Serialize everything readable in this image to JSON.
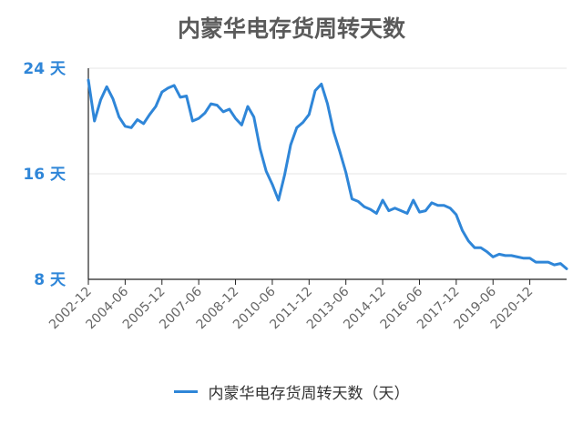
{
  "title": "内蒙华电存货周转天数",
  "chart_data": {
    "type": "line",
    "title": "内蒙华电存货周转天数",
    "y_ticks": [
      {
        "value": 24,
        "label": "24 天"
      },
      {
        "value": 16,
        "label": "16 天"
      },
      {
        "value": 8,
        "label": "8 天"
      }
    ],
    "ylim": [
      8,
      24
    ],
    "x_range": [
      "2002-12",
      "2022-06"
    ],
    "x_ticks": [
      "2002-12",
      "2004-06",
      "2005-12",
      "2007-06",
      "2008-12",
      "2010-06",
      "2011-12",
      "2013-06",
      "2014-12",
      "2016-06",
      "2017-12",
      "2019-06",
      "2020-12"
    ],
    "grid": true,
    "legend_position": "bottom",
    "series": [
      {
        "name": "内蒙华电存货周转天数（天）",
        "color": "#2f86d8",
        "x": [
          "2002-12",
          "2003-03",
          "2003-06",
          "2003-09",
          "2003-12",
          "2004-03",
          "2004-06",
          "2004-09",
          "2004-12",
          "2005-03",
          "2005-06",
          "2005-09",
          "2005-12",
          "2006-03",
          "2006-06",
          "2006-09",
          "2006-12",
          "2007-03",
          "2007-06",
          "2007-09",
          "2007-12",
          "2008-03",
          "2008-06",
          "2008-09",
          "2008-12",
          "2009-03",
          "2009-06",
          "2009-09",
          "2009-12",
          "2010-03",
          "2010-06",
          "2010-09",
          "2010-12",
          "2011-03",
          "2011-06",
          "2011-09",
          "2011-12",
          "2012-03",
          "2012-06",
          "2012-09",
          "2012-12",
          "2013-03",
          "2013-06",
          "2013-09",
          "2013-12",
          "2014-03",
          "2014-06",
          "2014-09",
          "2014-12",
          "2015-03",
          "2015-06",
          "2015-09",
          "2015-12",
          "2016-03",
          "2016-06",
          "2016-09",
          "2016-12",
          "2017-03",
          "2017-06",
          "2017-09",
          "2017-12",
          "2018-03",
          "2018-06",
          "2018-09",
          "2018-12",
          "2019-03",
          "2019-06",
          "2019-09",
          "2019-12",
          "2020-03",
          "2020-06",
          "2020-09",
          "2020-12",
          "2021-03",
          "2021-06",
          "2021-09",
          "2021-12",
          "2022-03",
          "2022-06"
        ],
        "values": [
          23.1,
          20.0,
          21.6,
          22.6,
          21.7,
          20.3,
          19.6,
          19.5,
          20.1,
          19.8,
          20.5,
          21.1,
          22.2,
          22.5,
          22.7,
          21.8,
          21.9,
          20.0,
          20.2,
          20.6,
          21.3,
          21.2,
          20.7,
          20.9,
          20.2,
          19.7,
          21.1,
          20.3,
          17.9,
          16.2,
          15.2,
          14.0,
          15.9,
          18.2,
          19.5,
          19.9,
          20.5,
          22.3,
          22.8,
          21.3,
          19.2,
          17.7,
          16.1,
          14.1,
          13.9,
          13.5,
          13.3,
          13.0,
          14.0,
          13.2,
          13.4,
          13.2,
          13.0,
          14.0,
          13.1,
          13.2,
          13.8,
          13.6,
          13.6,
          13.4,
          12.9,
          11.7,
          10.9,
          10.4,
          10.4,
          10.1,
          9.7,
          9.9,
          9.8,
          9.8,
          9.7,
          9.6,
          9.6,
          9.3,
          9.3,
          9.3,
          9.1,
          9.2,
          8.8
        ]
      }
    ]
  }
}
